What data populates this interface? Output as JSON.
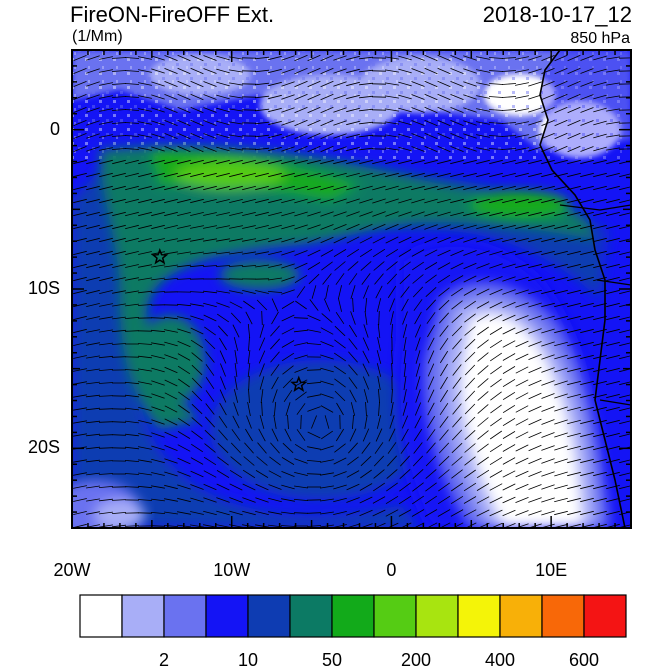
{
  "title_left": "FireON-FireOFF Ext.",
  "title_right": "2018-10-17_12",
  "units": "(1/Mm)",
  "level": "850 hPa",
  "axes": {
    "x_ticks": [
      {
        "value": -20,
        "label": "20W"
      },
      {
        "value": -10,
        "label": "10W"
      },
      {
        "value": 0,
        "label": "0"
      },
      {
        "value": 10,
        "label": "10E"
      }
    ],
    "y_ticks": [
      {
        "value": 0,
        "label": "0"
      },
      {
        "value": -10,
        "label": "10S"
      },
      {
        "value": -20,
        "label": "20S"
      }
    ],
    "lon_range": [
      -20,
      15
    ],
    "lat_range": [
      -25,
      5
    ]
  },
  "markers": [
    {
      "name": "star-marker-1",
      "lon": -14.5,
      "lat": -8
    },
    {
      "name": "star-marker-2",
      "lon": -5.8,
      "lat": -16
    }
  ],
  "colorbar": {
    "colors": [
      "#ffffff",
      "#a8aef7",
      "#6a72f0",
      "#1414f5",
      "#0e3cb2",
      "#0c7a64",
      "#12aa1a",
      "#55cc14",
      "#a8e410",
      "#f4f408",
      "#f8b008",
      "#f86808",
      "#f41414"
    ],
    "labels": [
      {
        "index": 1,
        "text": "2"
      },
      {
        "index": 3,
        "text": "10"
      },
      {
        "index": 5,
        "text": "50"
      },
      {
        "index": 7,
        "text": "200"
      },
      {
        "index": 9,
        "text": "400"
      },
      {
        "index": 11,
        "text": "600"
      }
    ]
  }
}
